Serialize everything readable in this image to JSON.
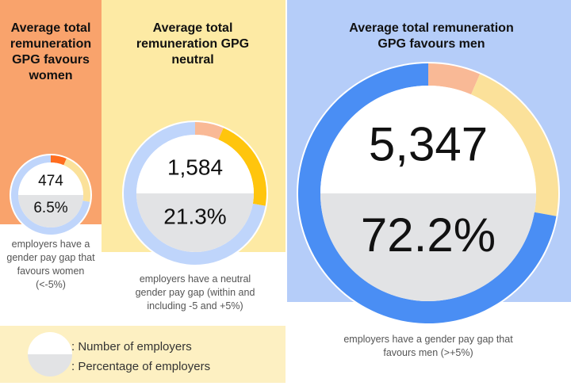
{
  "colors": {
    "women_bg": "#f9a36c",
    "neutral_bg": "#fdeaa4",
    "men_bg": "#b5cdf9",
    "seg_women": "#ff6d1f",
    "seg_neutral": "#ffc50d",
    "seg_men": "#4a8ef4",
    "track_women": "#f9b996",
    "track_neutral": "#fbe19a",
    "track_men": "#bfd5fb",
    "inner_top": "#ffffff",
    "inner_bottom": "#e2e3e5"
  },
  "chart_data": [
    {
      "type": "pie",
      "title": "Average total remuneration GPG favours women",
      "number": "474",
      "percent": "6.5%",
      "caption": "employers have a gender pay gap that favours women (<-5%)",
      "highlight": "women",
      "slices": [
        {
          "category": "women",
          "value": 6.5
        },
        {
          "category": "neutral",
          "value": 21.3
        },
        {
          "category": "men",
          "value": 72.2
        }
      ]
    },
    {
      "type": "pie",
      "title": "Average total remuneration GPG neutral",
      "number": "1,584",
      "percent": "21.3%",
      "caption": "employers have a neutral gender pay gap (within and including -5 and +5%)",
      "highlight": "neutral",
      "slices": [
        {
          "category": "women",
          "value": 6.5
        },
        {
          "category": "neutral",
          "value": 21.3
        },
        {
          "category": "men",
          "value": 72.2
        }
      ]
    },
    {
      "type": "pie",
      "title": "Average total remuneration GPG favours men",
      "number": "5,347",
      "percent": "72.2%",
      "caption": "employers have a gender pay gap that favours men (>+5%)",
      "highlight": "men",
      "slices": [
        {
          "category": "women",
          "value": 6.5
        },
        {
          "category": "neutral",
          "value": 21.3
        },
        {
          "category": "men",
          "value": 72.2
        }
      ]
    }
  ],
  "legend": {
    "number_label": ": Number of employers",
    "percent_label": ": Percentage of employers"
  }
}
